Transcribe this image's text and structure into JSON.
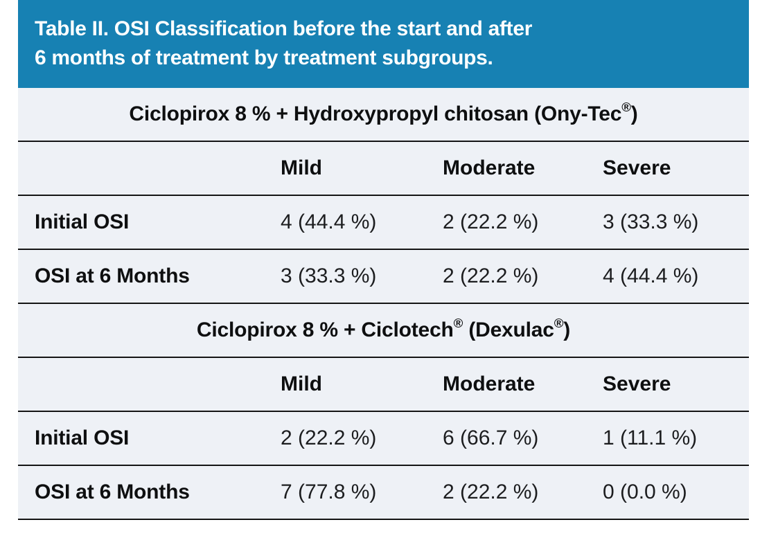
{
  "title": {
    "line1": "Table II. OSI Classification before the start and after",
    "line2": "6 months of treatment by treatment subgroups."
  },
  "colors": {
    "title_bar_bg": "#1781b3",
    "title_text": "#ffffff",
    "table_bg": "#eef1f6",
    "rule_line": "#141414",
    "body_text": "#1c1d1f"
  },
  "table": {
    "groups": [
      {
        "title_pre": "Ciclopirox 8 % + Hydroxypropyl chitosan (Ony-Tec",
        "title_sup1": "®",
        "title_end": ")",
        "columns": [
          "Mild",
          "Moderate",
          "Severe"
        ],
        "rows": [
          {
            "label": "Initial OSI",
            "values": [
              "4 (44.4 %)",
              "2 (22.2 %)",
              "3 (33.3 %)"
            ]
          },
          {
            "label": "OSI at 6 Months",
            "values": [
              "3 (33.3 %)",
              "2 (22.2 %)",
              "4 (44.4 %)"
            ]
          }
        ]
      },
      {
        "title_pre": "Ciclopirox 8 % + Ciclotech",
        "title_sup1": "®",
        "title_mid": " (Dexulac",
        "title_sup2": "®",
        "title_end": ")",
        "columns": [
          "Mild",
          "Moderate",
          "Severe"
        ],
        "rows": [
          {
            "label": "Initial OSI",
            "values": [
              "2 (22.2 %)",
              "6 (66.7 %)",
              "1 (11.1 %)"
            ]
          },
          {
            "label": "OSI at 6 Months",
            "values": [
              "7 (77.8 %)",
              "2 (22.2 %)",
              "0 (0.0 %)"
            ]
          }
        ]
      }
    ]
  }
}
